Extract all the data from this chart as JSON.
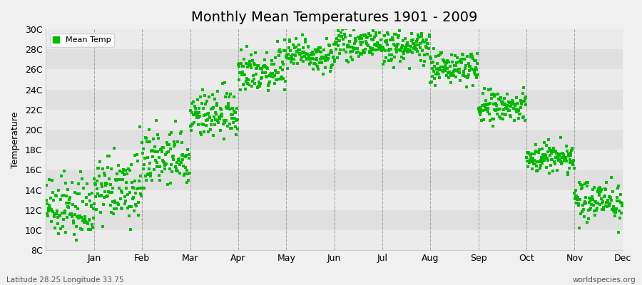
{
  "title": "Monthly Mean Temperatures 1901 - 2009",
  "ylabel": "Temperature",
  "xlabel": "",
  "subtitle_left": "Latitude 28.25 Longitude 33.75",
  "subtitle_right": "worldspecies.org",
  "legend_label": "Mean Temp",
  "ylim": [
    8,
    30
  ],
  "ytick_labels": [
    "8C",
    "10C",
    "12C",
    "14C",
    "16C",
    "18C",
    "20C",
    "22C",
    "24C",
    "26C",
    "28C",
    "30C"
  ],
  "ytick_values": [
    8,
    10,
    12,
    14,
    16,
    18,
    20,
    22,
    24,
    26,
    28,
    30
  ],
  "months": [
    "Jan",
    "Feb",
    "Mar",
    "Apr",
    "May",
    "Jun",
    "Jul",
    "Aug",
    "Sep",
    "Oct",
    "Nov",
    "Dec"
  ],
  "marker_color": "#00BB00",
  "marker_size": 3.5,
  "bg_color": "#f0f0f0",
  "stripe_color1": "#ebebeb",
  "stripe_color2": "#e0e0e0",
  "title_fontsize": 14,
  "axis_fontsize": 9,
  "tick_fontsize": 9,
  "mean_by_month": [
    12.0,
    14.0,
    17.0,
    21.5,
    26.0,
    27.5,
    28.5,
    28.2,
    26.2,
    22.2,
    17.2,
    13.0
  ],
  "spread_by_month": [
    1.5,
    1.6,
    1.5,
    1.2,
    1.2,
    0.8,
    0.7,
    0.8,
    0.8,
    0.9,
    0.8,
    1.0
  ],
  "n_years": 109
}
